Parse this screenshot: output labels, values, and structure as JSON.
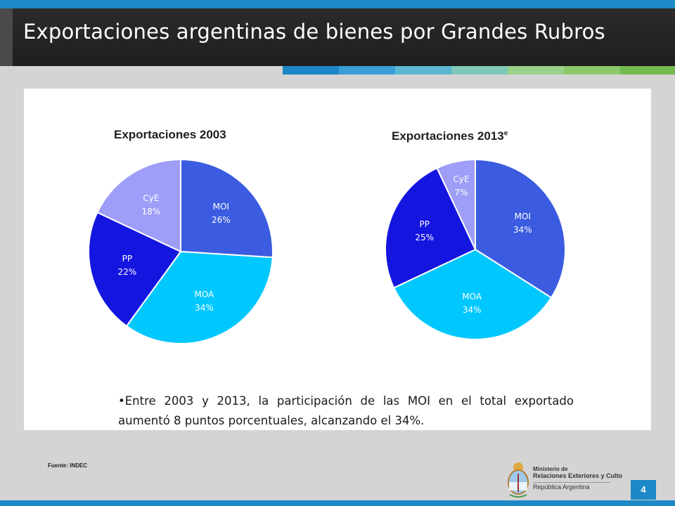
{
  "slide": {
    "title": "Exportaciones argentinas de bienes por Grandes Rubros",
    "note": "•Entre 2003 y 2013, la participación de las MOI en el total exportado aumentó 8 puntos porcentuales, alcanzando el 34%.",
    "source": "Fuente: INDEC",
    "page_number": "4",
    "strip_colors": [
      "#1c86c6",
      "#3aa0d6",
      "#5ab7d2",
      "#7ec8b8",
      "#9bd08a",
      "#8cc86a",
      "#74bb4e"
    ]
  },
  "footer_logo": {
    "line1": "Ministerio de",
    "line2": "Relaciones Exteriores y Culto",
    "line3": "República Argentina"
  },
  "colors": {
    "MOI": "#3b5ce0",
    "MOA": "#00c8ff",
    "PP": "#1515e0",
    "CyE": "#9e9ef8"
  },
  "chart_data": [
    {
      "type": "pie",
      "title": "Exportaciones 2003",
      "title_superscript": "",
      "slices": [
        {
          "label": "MOI",
          "value": 26,
          "value_label": "26%"
        },
        {
          "label": "MOA",
          "value": 34,
          "value_label": "34%"
        },
        {
          "label": "PP",
          "value": 22,
          "value_label": "22%"
        },
        {
          "label": "CyE",
          "value": 18,
          "value_label": "18%"
        }
      ]
    },
    {
      "type": "pie",
      "title": "Exportaciones 2013",
      "title_superscript": "e",
      "slices": [
        {
          "label": "MOI",
          "value": 34,
          "value_label": "34%"
        },
        {
          "label": "MOA",
          "value": 34,
          "value_label": "34%"
        },
        {
          "label": "PP",
          "value": 25,
          "value_label": "25%"
        },
        {
          "label": "CyE",
          "value": 7,
          "value_label": "7%"
        }
      ]
    }
  ]
}
